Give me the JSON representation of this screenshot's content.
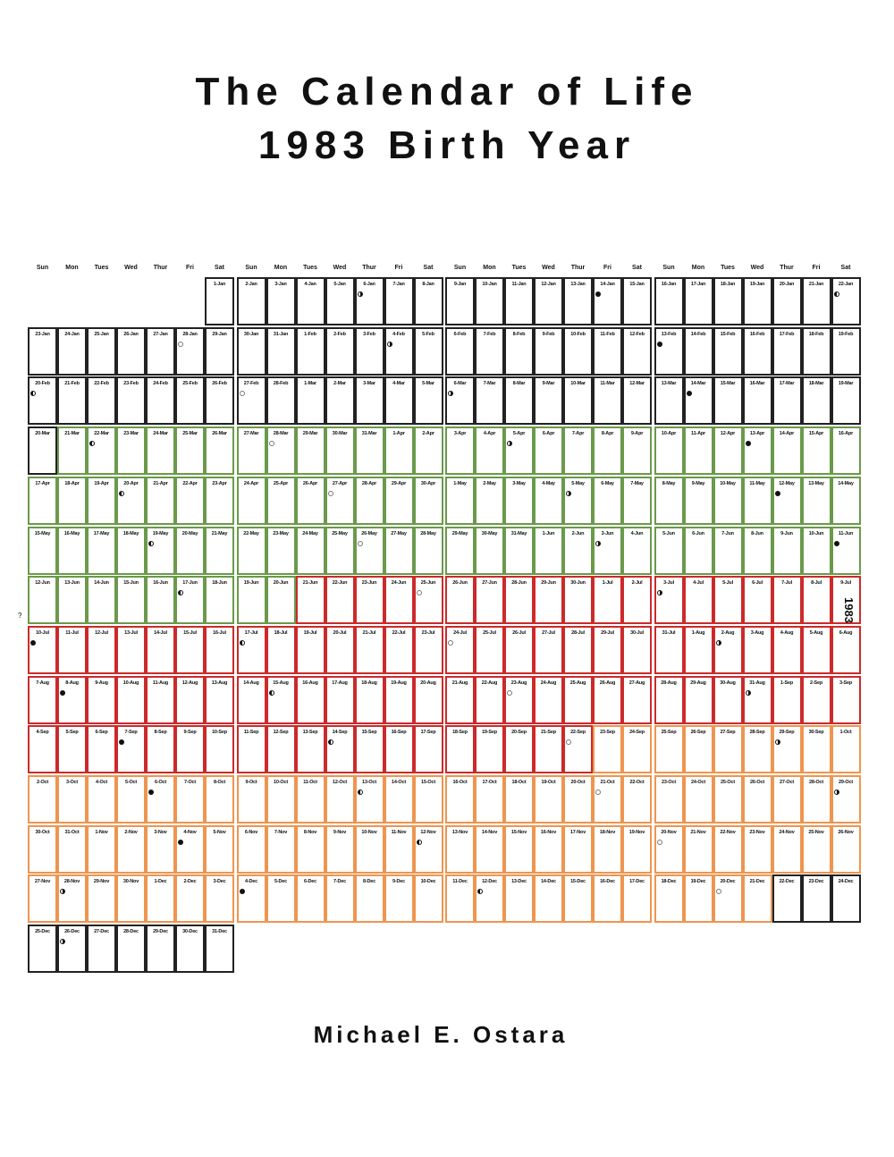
{
  "title": {
    "line1": "The Calendar of Life",
    "line2": "1983 Birth Year"
  },
  "author": "Michael E. Ostara",
  "side_label": "1983",
  "left_mark": "?",
  "day_headers": [
    "Sun",
    "Mon",
    "Tues",
    "Wed",
    "Thur",
    "Fri",
    "Sat"
  ],
  "season_colors": {
    "winter": "#222222",
    "spring": "#6a9a4a",
    "summer": "#cc2a2a",
    "fall": "#ee9550"
  },
  "seasons": [
    {
      "name": "winter",
      "start": "1-Jan",
      "end": "20-Mar"
    },
    {
      "name": "spring",
      "start": "21-Mar",
      "end": "20-Jun"
    },
    {
      "name": "summer",
      "start": "21-Jun",
      "end": "22-Sep"
    },
    {
      "name": "fall",
      "start": "23-Sep",
      "end": "21-Dec"
    },
    {
      "name": "winter",
      "start": "22-Dec",
      "end": "31-Dec"
    }
  ],
  "year": 1983,
  "first_weekday": 6,
  "moon_phases": {
    "6-Jan": "first",
    "14-Jan": "new",
    "22-Jan": "last",
    "28-Jan": "full",
    "4-Feb": "first",
    "13-Feb": "new",
    "20-Feb": "last",
    "27-Feb": "full",
    "6-Mar": "first",
    "14-Mar": "new",
    "22-Mar": "last",
    "28-Mar": "full",
    "5-Apr": "first",
    "13-Apr": "new",
    "20-Apr": "last",
    "27-Apr": "full",
    "5-May": "first",
    "12-May": "new",
    "19-May": "last",
    "26-May": "full",
    "3-Jun": "first",
    "11-Jun": "new",
    "17-Jun": "last",
    "25-Jun": "full",
    "3-Jul": "first",
    "10-Jul": "new",
    "17-Jul": "last",
    "24-Jul": "full",
    "2-Aug": "first",
    "8-Aug": "new",
    "15-Aug": "last",
    "23-Aug": "full",
    "31-Aug": "first",
    "7-Sep": "new",
    "14-Sep": "last",
    "22-Sep": "full",
    "29-Sep": "first",
    "6-Oct": "new",
    "13-Oct": "last",
    "21-Oct": "full",
    "29-Oct": "first",
    "4-Nov": "new",
    "12-Nov": "last",
    "20-Nov": "full",
    "28-Nov": "first",
    "4-Dec": "new",
    "12-Dec": "last",
    "20-Dec": "full",
    "26-Dec": "first"
  }
}
